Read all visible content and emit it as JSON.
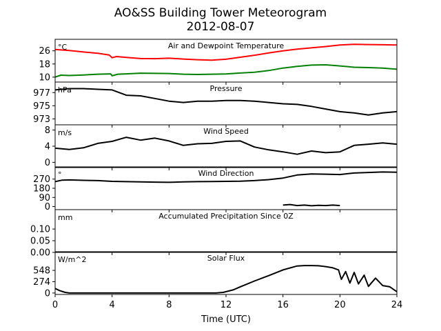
{
  "title": "AO&SS Building Tower Meteorogram",
  "subtitle": "2012-08-07",
  "chart_data": {
    "type": "line",
    "xlabel": "Time (UTC)",
    "xlim": [
      0,
      24
    ],
    "xticks": [
      0,
      4,
      8,
      12,
      16,
      20,
      24
    ],
    "panels": [
      {
        "id": "temperature",
        "title": "Air and Dewpoint Temperature",
        "unit": "°C",
        "ylim": [
          7,
          33
        ],
        "yticks": [
          10,
          18,
          26
        ],
        "series": [
          {
            "color": "#ff0000",
            "x": [
              0,
              1,
              2,
              3,
              3.8,
              4,
              4.3,
              5,
              6,
              7,
              8,
              9,
              10,
              11,
              12,
              13,
              14,
              15,
              16,
              17,
              18,
              19,
              20,
              21,
              22,
              23,
              24
            ],
            "y": [
              26.8,
              26.2,
              25.3,
              24.5,
              23.5,
              21.8,
              22.5,
              22,
              21.3,
              21.2,
              21.5,
              21,
              20.6,
              20.3,
              20.9,
              22.1,
              23.3,
              24.7,
              26,
              27,
              27.8,
              28.6,
              29.5,
              30,
              29.8,
              29.7,
              29.5
            ]
          },
          {
            "color": "#008000",
            "x": [
              0,
              0.4,
              1,
              2,
              3,
              3.9,
              4,
              4.4,
              5,
              6,
              7,
              8,
              9,
              10,
              11,
              12,
              13,
              14,
              15,
              16,
              17,
              18,
              19,
              20,
              21,
              22,
              23,
              24
            ],
            "y": [
              10,
              11.2,
              11,
              11.3,
              11.8,
              12,
              10.8,
              11.8,
              12,
              12.4,
              12.3,
              12.2,
              11.8,
              11.6,
              11.8,
              11.9,
              12.5,
              13,
              14,
              15.5,
              16.5,
              17.3,
              17.5,
              16.8,
              16,
              15.8,
              15.5,
              14.8
            ]
          }
        ]
      },
      {
        "id": "pressure",
        "title": "Pressure",
        "unit": "hPa",
        "ylim": [
          972.1,
          978.6
        ],
        "yticks": [
          973,
          975,
          977
        ],
        "yticklabels": [
          "973",
          "975",
          "977"
        ],
        "series": [
          {
            "color": "#000000",
            "x": [
              0,
              1,
              2,
              3,
              4,
              5,
              6,
              7,
              8,
              9,
              10,
              11,
              12,
              13,
              14,
              15,
              16,
              17,
              18,
              19,
              20,
              21,
              22,
              23,
              24
            ],
            "y": [
              977.4,
              977.6,
              977.6,
              977.5,
              977.4,
              976.6,
              976.5,
              976.1,
              975.7,
              975.5,
              975.7,
              975.7,
              975.8,
              975.8,
              975.7,
              975.5,
              975.3,
              975.2,
              974.9,
              974.5,
              974.1,
              973.9,
              973.6,
              973.9,
              974.1
            ]
          }
        ]
      },
      {
        "id": "wind_speed",
        "title": "Wind Speed",
        "unit": "m/s",
        "ylim": [
          -1.3,
          9.3
        ],
        "yticks": [
          0,
          4,
          8
        ],
        "series": [
          {
            "color": "#000000",
            "x": [
              0,
              1,
              2,
              3,
              4,
              5,
              6,
              7,
              8,
              9,
              10,
              11,
              12,
              13,
              14,
              15,
              16,
              17,
              18,
              19,
              20,
              21,
              22,
              23,
              24
            ],
            "y": [
              3.5,
              3.2,
              3.6,
              4.7,
              5.2,
              6.2,
              5.5,
              6,
              5.3,
              4.2,
              4.6,
              4.7,
              5.2,
              5.3,
              3.8,
              3.1,
              2.6,
              2,
              2.8,
              2.4,
              2.6,
              4.2,
              4.5,
              4.8,
              4.5
            ]
          }
        ]
      },
      {
        "id": "wind_direction",
        "title": "Wind Direction",
        "unit": "°",
        "ylim": [
          -30,
          390
        ],
        "yticks": [
          0,
          90,
          180,
          270
        ],
        "series": [
          {
            "color": "#000000",
            "x": [
              0,
              0.5,
              1,
              2,
              3,
              4,
              5,
              6,
              7,
              8,
              9,
              10,
              11,
              12,
              13,
              14,
              15,
              16,
              17,
              18,
              19,
              20,
              21,
              22,
              23,
              24
            ],
            "y": [
              245,
              260,
              262,
              258,
              255,
              248,
              245,
              242,
              240,
              238,
              242,
              245,
              246,
              248,
              250,
              255,
              265,
              280,
              310,
              320,
              318,
              315,
              330,
              335,
              340,
              338
            ]
          },
          {
            "color": "#000000",
            "x": [
              16,
              16.5,
              17,
              17.5,
              18,
              18.5,
              19,
              19.5,
              20
            ],
            "y": [
              15,
              20,
              10,
              15,
              8,
              12,
              10,
              15,
              10
            ]
          }
        ]
      },
      {
        "id": "precipitation",
        "title": "Accumulated Precipitation Since 0Z",
        "unit": "mm",
        "ylim": [
          0,
          0.183
        ],
        "yticks": [
          0.0,
          0.05,
          0.1
        ],
        "yticklabels": [
          "0.00",
          "0.05",
          "0.10"
        ],
        "series": [
          {
            "color": "#000000",
            "x": [
              0,
              24
            ],
            "y": [
              0,
              0
            ]
          }
        ]
      },
      {
        "id": "solar_flux",
        "title": "Solar Flux",
        "unit": "W/m^2",
        "ylim": [
          -35,
          1000
        ],
        "yticks": [
          0,
          274,
          548
        ],
        "series": [
          {
            "color": "#000000",
            "x": [
              0,
              0.3,
              0.7,
              1,
              1.5,
              3,
              6,
              9,
              11.3,
              11.8,
              12.5,
              13,
              14,
              15,
              16,
              17,
              17.5,
              18,
              18.5,
              19,
              19.5,
              19.9,
              20.1,
              20.4,
              20.7,
              21,
              21.3,
              21.7,
              22,
              22.5,
              23,
              23.5,
              24
            ],
            "y": [
              110,
              60,
              15,
              0,
              0,
              0,
              0,
              0,
              0,
              15,
              75,
              150,
              290,
              420,
              560,
              655,
              665,
              665,
              660,
              640,
              610,
              560,
              330,
              520,
              240,
              500,
              220,
              430,
              160,
              360,
              180,
              150,
              30
            ]
          }
        ]
      }
    ]
  }
}
